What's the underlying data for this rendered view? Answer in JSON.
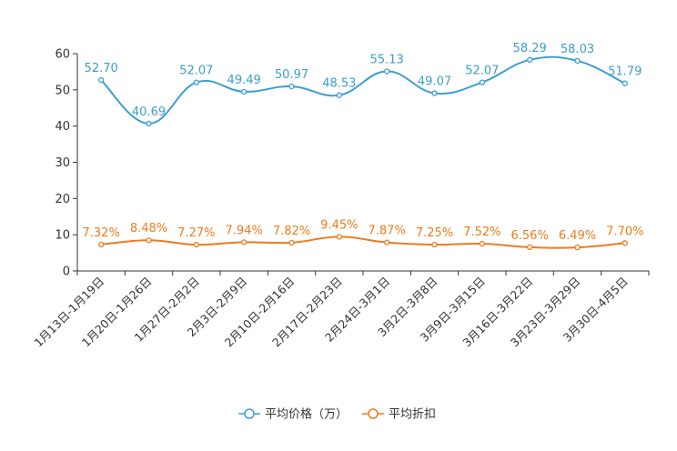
{
  "chart_data": {
    "type": "line",
    "title": "",
    "xlabel": "",
    "ylabel": "",
    "ylim": [
      0,
      60
    ],
    "yticks": [
      0,
      10,
      20,
      30,
      40,
      50,
      60
    ],
    "grid": false,
    "legend_position": "bottom-center",
    "categories": [
      "1月13日-1月19日",
      "1月20日-1月26日",
      "1月27日-2月2日",
      "2月3日-2月9日",
      "2月10日-2月16日",
      "2月17日-2月23日",
      "2月24日-3月1日",
      "3月2日-3月8日",
      "3月9日-3月15日",
      "3月16日-3月22日",
      "3月23日-3月29日",
      "3月30日-4月5日"
    ],
    "series": [
      {
        "name": "平均价格（万）",
        "color": "#3c9ecf",
        "values": [
          52.7,
          40.69,
          52.07,
          49.49,
          50.97,
          48.53,
          55.13,
          49.07,
          52.07,
          58.29,
          58.03,
          51.79
        ],
        "labels": [
          "52.70",
          "40.69",
          "52.07",
          "49.49",
          "50.97",
          "48.53",
          "55.13",
          "49.07",
          "52.07",
          "58.29",
          "58.03",
          "51.79"
        ]
      },
      {
        "name": "平均折扣",
        "color": "#ee7b1c",
        "values": [
          7.32,
          8.48,
          7.27,
          7.94,
          7.82,
          9.45,
          7.87,
          7.25,
          7.52,
          6.56,
          6.49,
          7.7
        ],
        "labels": [
          "7.32%",
          "8.48%",
          "7.27%",
          "7.94%",
          "7.82%",
          "9.45%",
          "7.87%",
          "7.25%",
          "7.52%",
          "6.56%",
          "6.49%",
          "7.70%"
        ]
      }
    ]
  }
}
